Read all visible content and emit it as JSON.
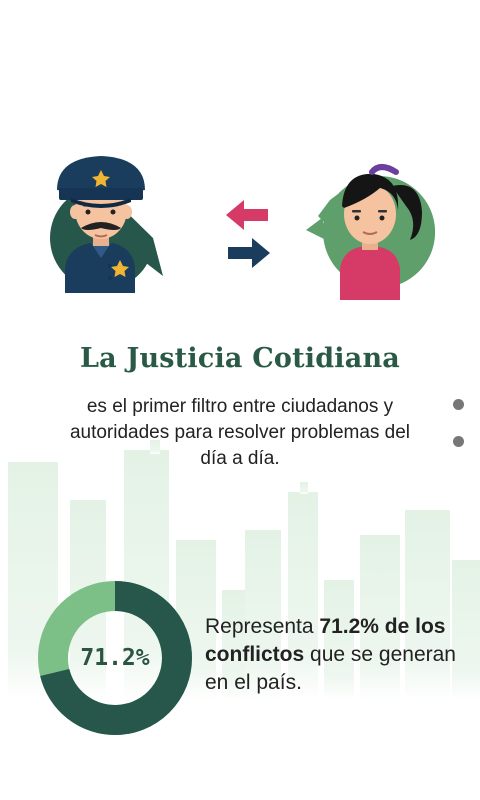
{
  "title": "La Justicia Cotidiana",
  "subtitle": {
    "line1": "es el primer filtro entre ciudadanos y",
    "line2": "autoridades para resolver problemas del",
    "line3": "día a día."
  },
  "stat": {
    "value": 71.2,
    "donut_label": "71.2%",
    "text_prefix": "Representa ",
    "text_bold": "71.2% de los conflictos",
    "text_suffix": " que se generan en el país."
  },
  "icons": {
    "officer": "police-officer-icon",
    "citizen": "citizen-woman-icon",
    "exchange": "exchange-arrows-icon"
  },
  "colors": {
    "green_dark": "#26574a",
    "green_mid": "#5e9f6c",
    "green_light": "#7cbf87",
    "pink": "#d63a66",
    "navy": "#1b3d5d",
    "skyline": "#e8f3ea"
  }
}
